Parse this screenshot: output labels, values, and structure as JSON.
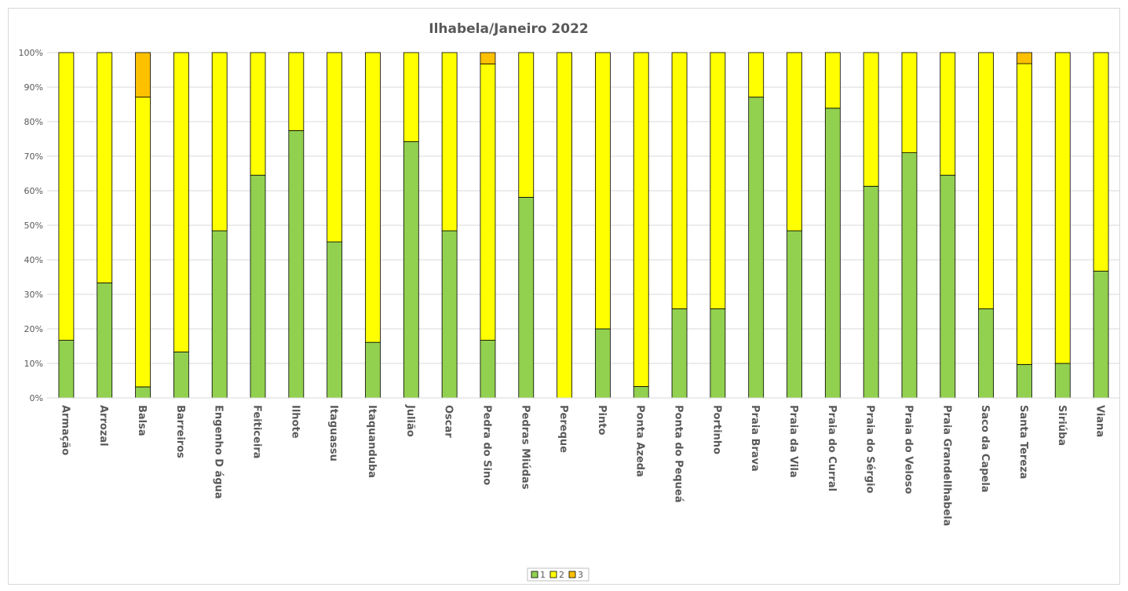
{
  "chart_data": {
    "type": "bar",
    "stacked": true,
    "percent": true,
    "title": "Ilhabela/Janeiro 2022",
    "xlabel": "",
    "ylabel": "",
    "ylim": [
      0,
      100
    ],
    "yticks": [
      "0%",
      "10%",
      "20%",
      "30%",
      "40%",
      "50%",
      "60%",
      "70%",
      "80%",
      "90%",
      "100%"
    ],
    "grid": true,
    "legend_position": "bottom",
    "categories": [
      "Armação",
      "Arrozal",
      "Balsa",
      "Barreiros",
      "Engenho D água",
      "Feiticeira",
      "Ilhote",
      "Itaguassu",
      "Itaquanduba",
      "Julião",
      "Oscar",
      "Pedra do Sino",
      "Pedras Miúdas",
      "Pereque",
      "Pinto",
      "Ponta Azeda",
      "Ponta do Pequeá",
      "Portinho",
      "Praia Brava",
      "Praia da Vila",
      "Praia do Curral",
      "Praia do Sérgio",
      "Praia do Veloso",
      "Praia GrandeIlhabela",
      "Saco da Capela",
      "Santa Tereza",
      "Siriúba",
      "Viana"
    ],
    "series": [
      {
        "name": "1",
        "color": "#92d050",
        "values": [
          16.7,
          33.3,
          3.2,
          13.3,
          48.4,
          64.5,
          77.4,
          45.2,
          16.1,
          74.2,
          48.4,
          16.7,
          58.1,
          0,
          20.0,
          3.3,
          25.8,
          25.8,
          87.1,
          48.4,
          83.9,
          61.3,
          71.0,
          64.5,
          25.8,
          9.7,
          10.0,
          36.7
        ]
      },
      {
        "name": "2",
        "color": "#ffff00",
        "values": [
          83.3,
          66.7,
          83.9,
          86.7,
          51.6,
          35.5,
          22.6,
          54.8,
          83.9,
          25.8,
          51.6,
          80.0,
          41.9,
          100,
          80.0,
          96.7,
          74.2,
          74.2,
          12.9,
          51.6,
          16.1,
          38.7,
          29.0,
          35.5,
          74.2,
          87.1,
          90.0,
          63.3
        ]
      },
      {
        "name": "3",
        "color": "#ffc000",
        "values": [
          0,
          0,
          12.9,
          0,
          0,
          0,
          0,
          0,
          0,
          0,
          0,
          3.3,
          0,
          0,
          0,
          0,
          0,
          0,
          0,
          0,
          0,
          0,
          0,
          0,
          0,
          3.2,
          0,
          0
        ]
      }
    ]
  }
}
